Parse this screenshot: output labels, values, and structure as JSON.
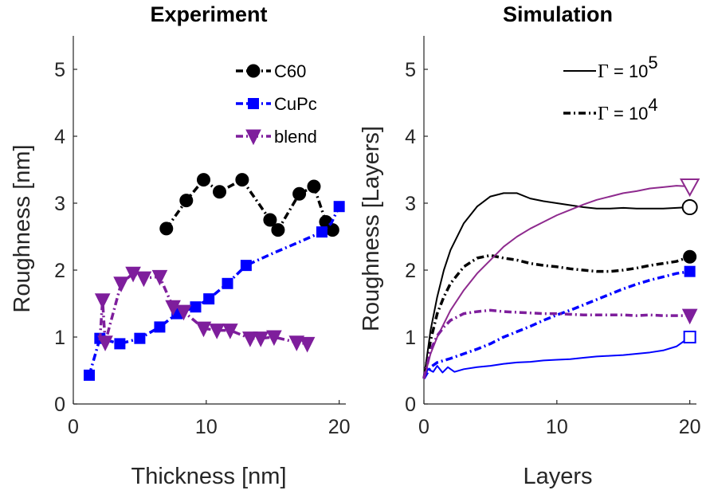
{
  "chart_data": [
    {
      "type": "line",
      "title": "Experiment",
      "xlabel": "Thickness [nm]",
      "ylabel": "Roughness [nm]",
      "xlim": [
        0,
        20.5
      ],
      "ylim": [
        0,
        5.5
      ],
      "xticks": [
        "0",
        "10",
        "20"
      ],
      "yticks": [
        "0",
        "1",
        "2",
        "3",
        "4",
        "5"
      ],
      "legend_position": "top-right",
      "series": [
        {
          "name": "C60",
          "color": "#000000",
          "marker": "circle",
          "line": "dash-dot",
          "x": [
            7.0,
            8.5,
            9.8,
            11.0,
            12.7,
            14.8,
            15.4,
            17.0,
            18.1,
            19.0,
            19.5
          ],
          "y": [
            2.62,
            3.04,
            3.35,
            3.17,
            3.35,
            2.75,
            2.6,
            3.14,
            3.25,
            2.72,
            2.6
          ]
        },
        {
          "name": "CuPc",
          "color": "#0000ff",
          "marker": "square",
          "line": "dash-dot",
          "x": [
            1.2,
            2.0,
            3.5,
            5.0,
            6.5,
            7.8,
            9.2,
            10.2,
            11.6,
            13.0,
            18.7,
            20.0
          ],
          "y": [
            0.43,
            0.98,
            0.9,
            0.98,
            1.15,
            1.35,
            1.45,
            1.57,
            1.8,
            2.07,
            2.57,
            2.95
          ],
          "path": [
            [
              1.2,
              0.43
            ],
            [
              2.0,
              0.98
            ],
            [
              3.5,
              0.9
            ],
            [
              5.0,
              0.98
            ],
            [
              6.5,
              1.15
            ],
            [
              7.8,
              1.35
            ],
            [
              9.2,
              1.45
            ],
            [
              10.2,
              1.57
            ],
            [
              11.6,
              1.8
            ],
            [
              13.0,
              2.07
            ],
            [
              15.0,
              2.25
            ],
            [
              17.0,
              2.42
            ],
            [
              18.7,
              2.57
            ],
            [
              19.4,
              2.7
            ],
            [
              20.0,
              2.95
            ]
          ]
        },
        {
          "name": "blend",
          "color": "#7e1e9c",
          "marker": "triangle-down",
          "line": "dash-dot",
          "x": [
            2.2,
            2.4,
            3.6,
            4.5,
            5.3,
            6.5,
            7.5,
            8.3,
            9.8,
            10.8,
            11.8,
            13.3,
            14.1,
            15.1,
            16.8,
            17.6
          ],
          "y": [
            1.55,
            0.92,
            1.8,
            1.95,
            1.88,
            1.9,
            1.45,
            1.38,
            1.13,
            1.1,
            1.1,
            0.98,
            0.98,
            1.0,
            0.92,
            0.9
          ],
          "path": [
            [
              2.0,
              0.95
            ],
            [
              2.2,
              1.55
            ],
            [
              2.4,
              0.92
            ],
            [
              3.6,
              1.8
            ],
            [
              4.5,
              1.95
            ],
            [
              5.3,
              1.88
            ],
            [
              6.5,
              1.9
            ],
            [
              7.5,
              1.45
            ],
            [
              8.3,
              1.38
            ],
            [
              9.8,
              1.13
            ],
            [
              10.8,
              1.1
            ],
            [
              11.8,
              1.1
            ],
            [
              13.3,
              0.98
            ],
            [
              14.1,
              0.98
            ],
            [
              15.1,
              1.0
            ],
            [
              16.8,
              0.92
            ],
            [
              17.6,
              0.9
            ]
          ]
        }
      ]
    },
    {
      "type": "line",
      "title": "Simulation",
      "xlabel": "Layers",
      "ylabel": "Roughness [Layers]",
      "xlim": [
        0,
        20.5
      ],
      "ylim": [
        0,
        5.5
      ],
      "xticks": [
        "0",
        "10",
        "20"
      ],
      "yticks": [
        "0",
        "1",
        "2",
        "3",
        "4",
        "5"
      ],
      "legend_position": "top-right",
      "legend": [
        {
          "gamma": "Γ",
          "eq": " = 10",
          "exp": "5",
          "line": "solid"
        },
        {
          "gamma": "Γ",
          "eq": " = 10",
          "exp": "4",
          "line": "dash-dot"
        }
      ],
      "series": [
        {
          "group": "C60",
          "gamma_exp": "5",
          "color": "#000000",
          "line": "solid",
          "end_marker": "circle-open",
          "points": [
            [
              0,
              0.38
            ],
            [
              0.5,
              1.1
            ],
            [
              1,
              1.6
            ],
            [
              1.5,
              2.0
            ],
            [
              2,
              2.3
            ],
            [
              3,
              2.7
            ],
            [
              4,
              2.95
            ],
            [
              5,
              3.1
            ],
            [
              6,
              3.15
            ],
            [
              7,
              3.15
            ],
            [
              8,
              3.07
            ],
            [
              9,
              3.03
            ],
            [
              10,
              3.0
            ],
            [
              11,
              2.97
            ],
            [
              12,
              2.94
            ],
            [
              13,
              2.92
            ],
            [
              14,
              2.92
            ],
            [
              15,
              2.93
            ],
            [
              16,
              2.92
            ],
            [
              17,
              2.92
            ],
            [
              18,
              2.92
            ],
            [
              19,
              2.93
            ],
            [
              20,
              2.94
            ]
          ]
        },
        {
          "group": "C60",
          "gamma_exp": "4",
          "color": "#000000",
          "line": "dash-dot",
          "end_marker": "circle-filled",
          "points": [
            [
              0,
              0.38
            ],
            [
              0.5,
              0.95
            ],
            [
              1,
              1.35
            ],
            [
              1.5,
              1.6
            ],
            [
              2,
              1.8
            ],
            [
              3,
              2.05
            ],
            [
              4,
              2.18
            ],
            [
              5,
              2.22
            ],
            [
              6,
              2.18
            ],
            [
              7,
              2.15
            ],
            [
              8,
              2.1
            ],
            [
              9,
              2.07
            ],
            [
              10,
              2.05
            ],
            [
              11,
              2.02
            ],
            [
              12,
              2.0
            ],
            [
              13,
              1.98
            ],
            [
              14,
              1.98
            ],
            [
              15,
              2.0
            ],
            [
              16,
              2.03
            ],
            [
              17,
              2.07
            ],
            [
              18,
              2.1
            ],
            [
              19,
              2.13
            ],
            [
              20,
              2.2
            ]
          ]
        },
        {
          "group": "CuPc",
          "gamma_exp": "5",
          "color": "#0000ff",
          "line": "solid",
          "end_marker": "square-open",
          "points": [
            [
              0,
              0.38
            ],
            [
              0.3,
              0.52
            ],
            [
              0.7,
              0.48
            ],
            [
              1,
              0.57
            ],
            [
              1.4,
              0.47
            ],
            [
              1.8,
              0.55
            ],
            [
              2.3,
              0.48
            ],
            [
              3,
              0.52
            ],
            [
              4,
              0.55
            ],
            [
              5,
              0.57
            ],
            [
              6,
              0.6
            ],
            [
              7,
              0.62
            ],
            [
              8,
              0.63
            ],
            [
              9,
              0.65
            ],
            [
              10,
              0.66
            ],
            [
              11,
              0.67
            ],
            [
              12,
              0.69
            ],
            [
              13,
              0.71
            ],
            [
              14,
              0.72
            ],
            [
              15,
              0.73
            ],
            [
              16,
              0.75
            ],
            [
              17,
              0.77
            ],
            [
              18,
              0.8
            ],
            [
              19,
              0.86
            ],
            [
              20,
              1.0
            ]
          ]
        },
        {
          "group": "CuPc",
          "gamma_exp": "4",
          "color": "#0000ff",
          "line": "dash-dot",
          "end_marker": "square-filled",
          "points": [
            [
              0,
              0.38
            ],
            [
              0.5,
              0.55
            ],
            [
              1,
              0.62
            ],
            [
              2,
              0.68
            ],
            [
              3,
              0.75
            ],
            [
              4,
              0.82
            ],
            [
              5,
              0.9
            ],
            [
              6,
              1.0
            ],
            [
              7,
              1.08
            ],
            [
              8,
              1.16
            ],
            [
              9,
              1.25
            ],
            [
              10,
              1.33
            ],
            [
              11,
              1.4
            ],
            [
              12,
              1.48
            ],
            [
              13,
              1.56
            ],
            [
              14,
              1.64
            ],
            [
              15,
              1.72
            ],
            [
              16,
              1.79
            ],
            [
              17,
              1.85
            ],
            [
              18,
              1.9
            ],
            [
              19,
              1.95
            ],
            [
              20,
              1.98
            ]
          ]
        },
        {
          "group": "blend",
          "gamma_exp": "5",
          "color": "#8e2a8e",
          "line": "solid",
          "end_marker": "triangle-open",
          "points": [
            [
              0,
              0.38
            ],
            [
              0.5,
              0.75
            ],
            [
              1,
              1.0
            ],
            [
              2,
              1.4
            ],
            [
              3,
              1.7
            ],
            [
              4,
              1.95
            ],
            [
              5,
              2.15
            ],
            [
              6,
              2.35
            ],
            [
              7,
              2.5
            ],
            [
              8,
              2.62
            ],
            [
              9,
              2.72
            ],
            [
              10,
              2.82
            ],
            [
              11,
              2.9
            ],
            [
              12,
              2.98
            ],
            [
              13,
              3.05
            ],
            [
              14,
              3.1
            ],
            [
              15,
              3.15
            ],
            [
              16,
              3.18
            ],
            [
              17,
              3.22
            ],
            [
              18,
              3.24
            ],
            [
              19,
              3.26
            ],
            [
              20,
              3.25
            ]
          ]
        },
        {
          "group": "blend",
          "gamma_exp": "4",
          "color": "#7e1e9c",
          "line": "dash-dot",
          "end_marker": "triangle-filled",
          "points": [
            [
              0,
              0.38
            ],
            [
              0.5,
              0.8
            ],
            [
              1,
              1.02
            ],
            [
              1.5,
              1.15
            ],
            [
              2,
              1.25
            ],
            [
              3,
              1.35
            ],
            [
              4,
              1.38
            ],
            [
              5,
              1.4
            ],
            [
              6,
              1.38
            ],
            [
              7,
              1.37
            ],
            [
              8,
              1.36
            ],
            [
              9,
              1.35
            ],
            [
              10,
              1.35
            ],
            [
              11,
              1.34
            ],
            [
              12,
              1.33
            ],
            [
              13,
              1.33
            ],
            [
              14,
              1.33
            ],
            [
              15,
              1.33
            ],
            [
              16,
              1.32
            ],
            [
              17,
              1.33
            ],
            [
              18,
              1.32
            ],
            [
              19,
              1.32
            ],
            [
              20,
              1.32
            ]
          ]
        }
      ]
    }
  ]
}
